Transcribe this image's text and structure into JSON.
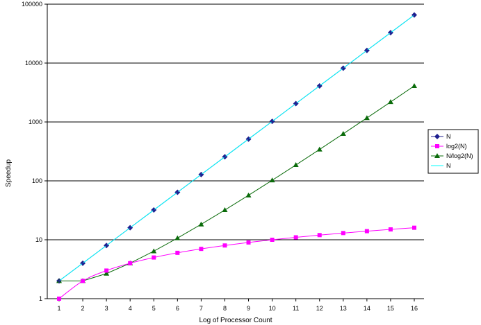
{
  "chart_data": {
    "type": "line",
    "title": "",
    "xlabel": "Log of Processor Count",
    "ylabel": "Speedup",
    "yscale": "log",
    "ylim": [
      1,
      100000
    ],
    "xlim": [
      1,
      16
    ],
    "grid": "horizontal major gridlines",
    "legend_position": "right",
    "x": [
      1,
      2,
      3,
      4,
      5,
      6,
      7,
      8,
      9,
      10,
      11,
      12,
      13,
      14,
      15,
      16
    ],
    "x_tick_labels": [
      "1",
      "2",
      "3",
      "4",
      "5",
      "6",
      "7",
      "8",
      "9",
      "10",
      "11",
      "12",
      "13",
      "14",
      "15",
      "16"
    ],
    "y_ticks": [
      1,
      10,
      100,
      1000,
      10000,
      100000
    ],
    "y_tick_labels": [
      "1",
      "10",
      "100",
      "1000",
      "10000",
      "100000"
    ],
    "series": [
      {
        "name": "N",
        "color": "#1f1f8f",
        "marker": "diamond",
        "line": true,
        "values": [
          2,
          4,
          8,
          16,
          32,
          64,
          128,
          256,
          512,
          1024,
          2048,
          4096,
          8192,
          16384,
          32768,
          65536
        ]
      },
      {
        "name": "log2(N)",
        "color": "#ff00ff",
        "marker": "square",
        "line": true,
        "values": [
          1,
          2,
          3,
          4,
          5,
          6,
          7,
          8,
          9,
          10,
          11,
          12,
          13,
          14,
          15,
          16
        ]
      },
      {
        "name": "N/log2(N)",
        "color": "#0a6b0a",
        "marker": "triangle",
        "line": true,
        "values": [
          2,
          2,
          2.67,
          4,
          6.4,
          10.67,
          18.29,
          32,
          56.89,
          102.4,
          186.18,
          341.33,
          630.15,
          1170.29,
          2184.53,
          4096
        ]
      },
      {
        "name": "N",
        "color": "#00ffff",
        "marker": "cross",
        "line": true,
        "values": [
          2,
          4,
          8,
          16,
          32,
          64,
          128,
          256,
          512,
          1024,
          2048,
          4096,
          8192,
          16384,
          32768,
          65536
        ]
      }
    ]
  }
}
